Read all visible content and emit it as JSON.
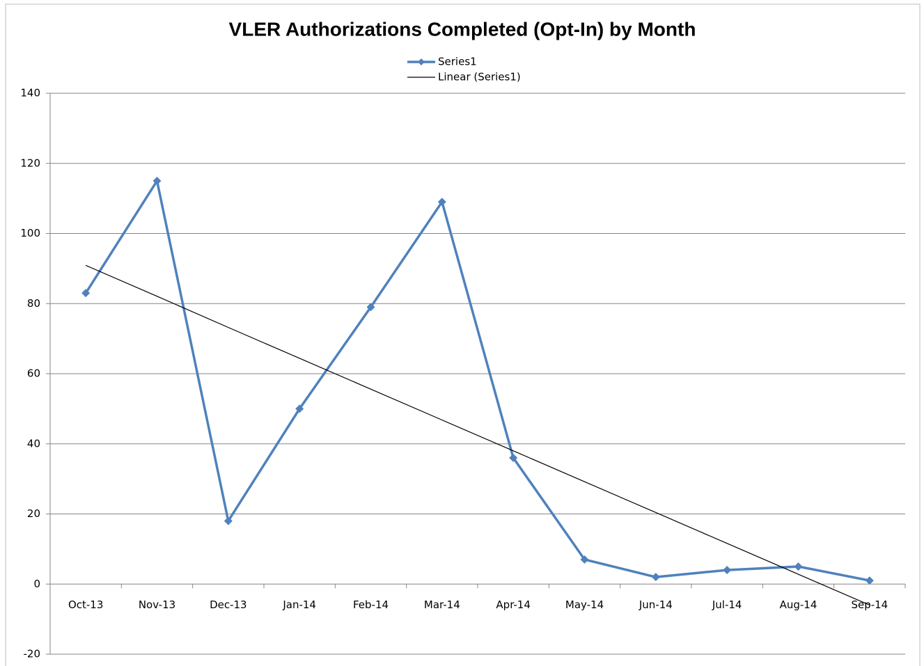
{
  "chart_data": {
    "type": "line",
    "title": "VLER Authorizations Completed (Opt-In) by Month",
    "categories": [
      "Oct-13",
      "Nov-13",
      "Dec-13",
      "Jan-14",
      "Feb-14",
      "Mar-14",
      "Apr-14",
      "May-14",
      "Jun-14",
      "Jul-14",
      "Aug-14",
      "Sep-14"
    ],
    "series": [
      {
        "name": "Series1",
        "color": "#4f81bd",
        "values": [
          83,
          115,
          18,
          50,
          79,
          109,
          36,
          7,
          2,
          4,
          5,
          1
        ]
      },
      {
        "name": "Linear (Series1)",
        "color": "#000000",
        "values": [
          90.9,
          82.1,
          73.2,
          64.4,
          55.6,
          46.8,
          38.0,
          29.2,
          20.4,
          11.6,
          2.8,
          -6.0
        ]
      }
    ],
    "ylim": [
      -20,
      140
    ],
    "yticks": [
      -20,
      0,
      20,
      40,
      60,
      80,
      100,
      120,
      140
    ],
    "grid": true,
    "legend": "top"
  }
}
